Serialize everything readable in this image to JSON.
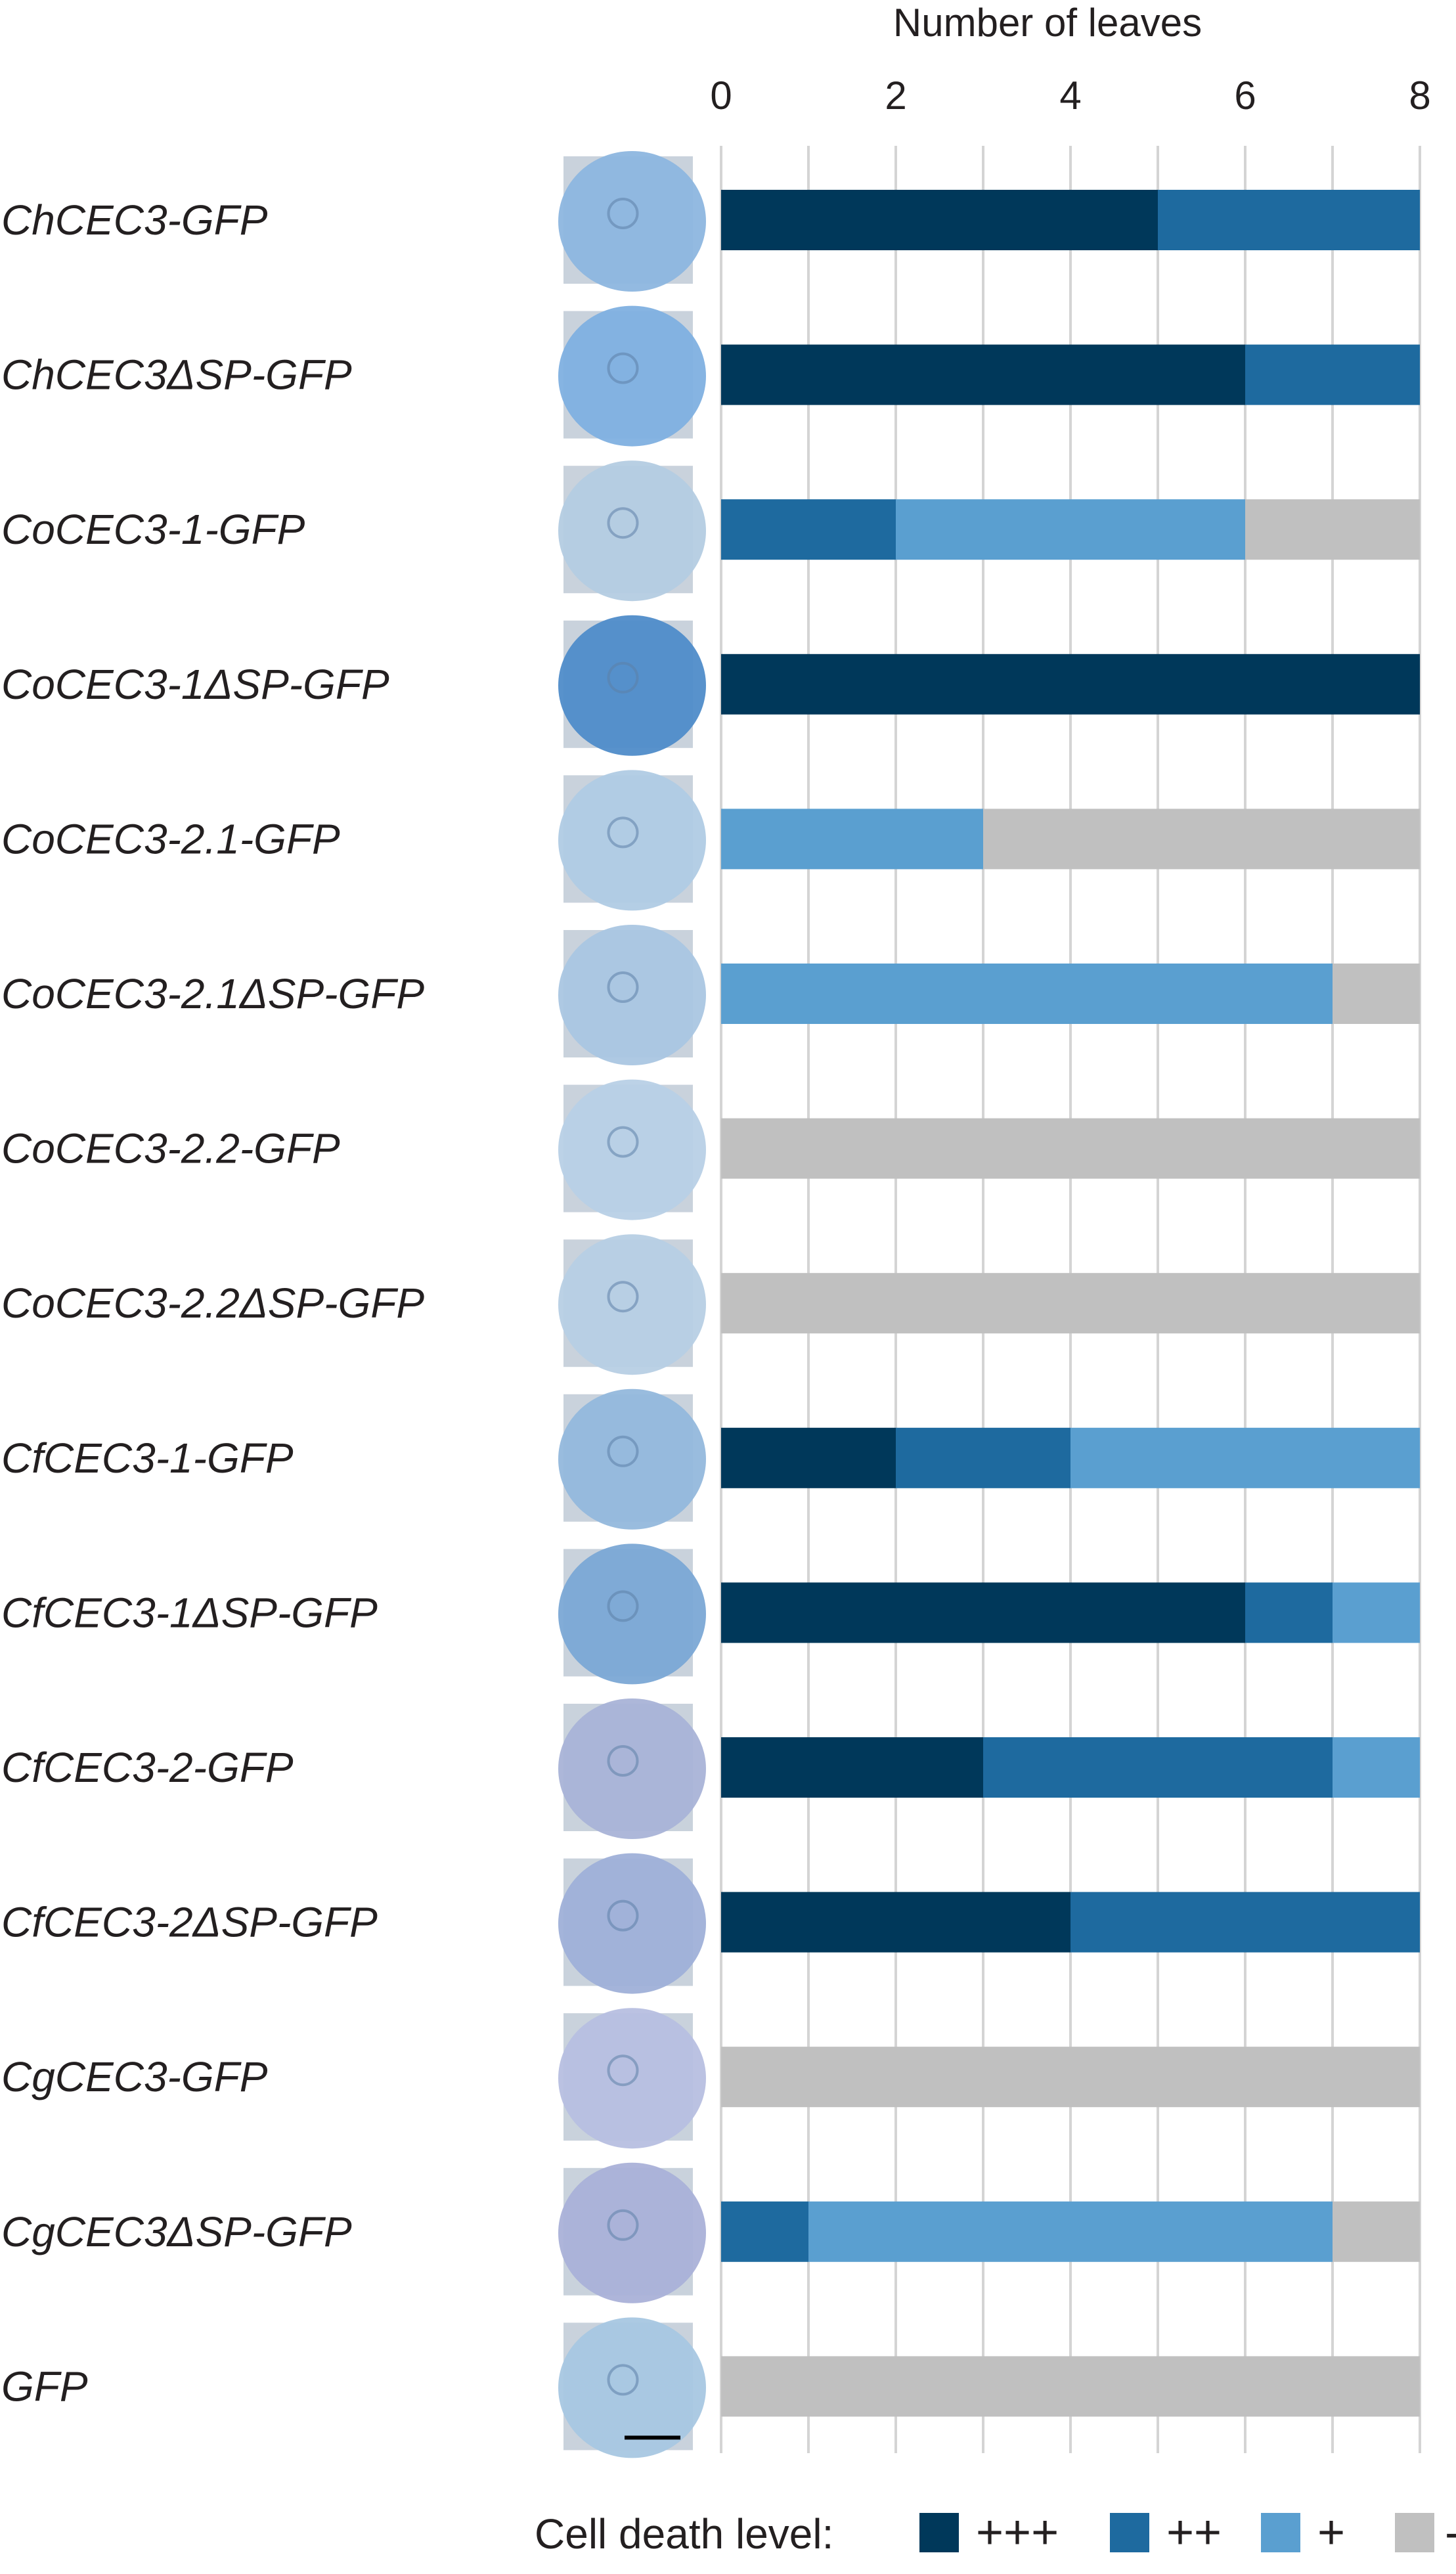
{
  "chart_data": {
    "type": "bar",
    "orientation": "horizontal",
    "stacked": true,
    "xlabel": "Number of leaves",
    "xlim": [
      0,
      8
    ],
    "xticks": [
      "0",
      "2",
      "4",
      "6",
      "8"
    ],
    "grid": true,
    "categories": [
      "ChCEC3-GFP",
      "ChCEC3ΔSP-GFP",
      "CoCEC3-1-GFP",
      "CoCEC3-1ΔSP-GFP",
      "CoCEC3-2.1-GFP",
      "CoCEC3-2.1ΔSP-GFP",
      "CoCEC3-2.2-GFP",
      "CoCEC3-2.2ΔSP-GFP",
      "CfCEC3-1-GFP",
      "CfCEC3-1ΔSP-GFP",
      "CfCEC3-2-GFP",
      "CfCEC3-2ΔSP-GFP",
      "CgCEC3-GFP",
      "CgCEC3ΔSP-GFP",
      "GFP"
    ],
    "series": [
      {
        "name": "+++",
        "color": "#00385a",
        "values": [
          5,
          6,
          0,
          8,
          0,
          0,
          0,
          0,
          2,
          6,
          3,
          4,
          0,
          0,
          0
        ]
      },
      {
        "name": "++",
        "color": "#1e6a9f",
        "values": [
          3,
          2,
          2,
          0,
          0,
          0,
          0,
          0,
          2,
          1,
          4,
          4,
          0,
          1,
          0
        ]
      },
      {
        "name": "+",
        "color": "#5a9fd0",
        "values": [
          0,
          0,
          4,
          0,
          3,
          7,
          0,
          0,
          4,
          1,
          1,
          0,
          0,
          6,
          0
        ]
      },
      {
        "name": "-",
        "color": "#c0c0c0",
        "values": [
          0,
          0,
          2,
          0,
          5,
          1,
          8,
          8,
          0,
          0,
          0,
          0,
          8,
          1,
          8
        ]
      }
    ],
    "legend": {
      "title": "Cell death level:",
      "position": "bottom-right"
    },
    "leaf_image_tints": [
      "#8db6df",
      "#7fb0e0",
      "#b4cce2",
      "#4f8cc9",
      "#b0cbe4",
      "#aac6e2",
      "#b8d0e6",
      "#b7cfe4",
      "#93b8dc",
      "#7ba8d5",
      "#a9b3d7",
      "#9fb0d8",
      "#b7bfe0",
      "#aab1d8",
      "#a8c7e2"
    ]
  }
}
